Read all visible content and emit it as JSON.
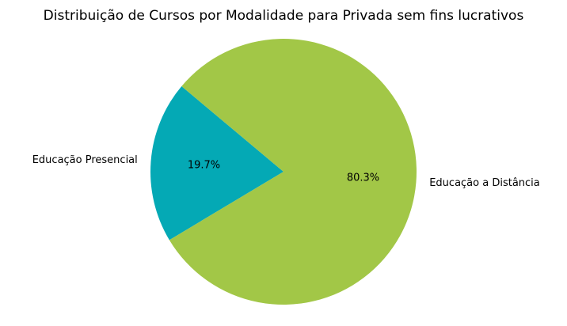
{
  "chart_data": {
    "type": "pie",
    "title": "Distribuição de Cursos por Modalidade para Privada sem fins lucrativos",
    "slices": [
      {
        "label": "Educação Presencial",
        "value": 19.7,
        "percent_label": "19.7%",
        "color": "#04a9b5"
      },
      {
        "label": "Educação a Distância",
        "value": 80.3,
        "percent_label": "80.3%",
        "color": "#a2c747"
      }
    ],
    "start_angle_deg": 140,
    "direction": "counterclockwise",
    "legend": "none"
  }
}
